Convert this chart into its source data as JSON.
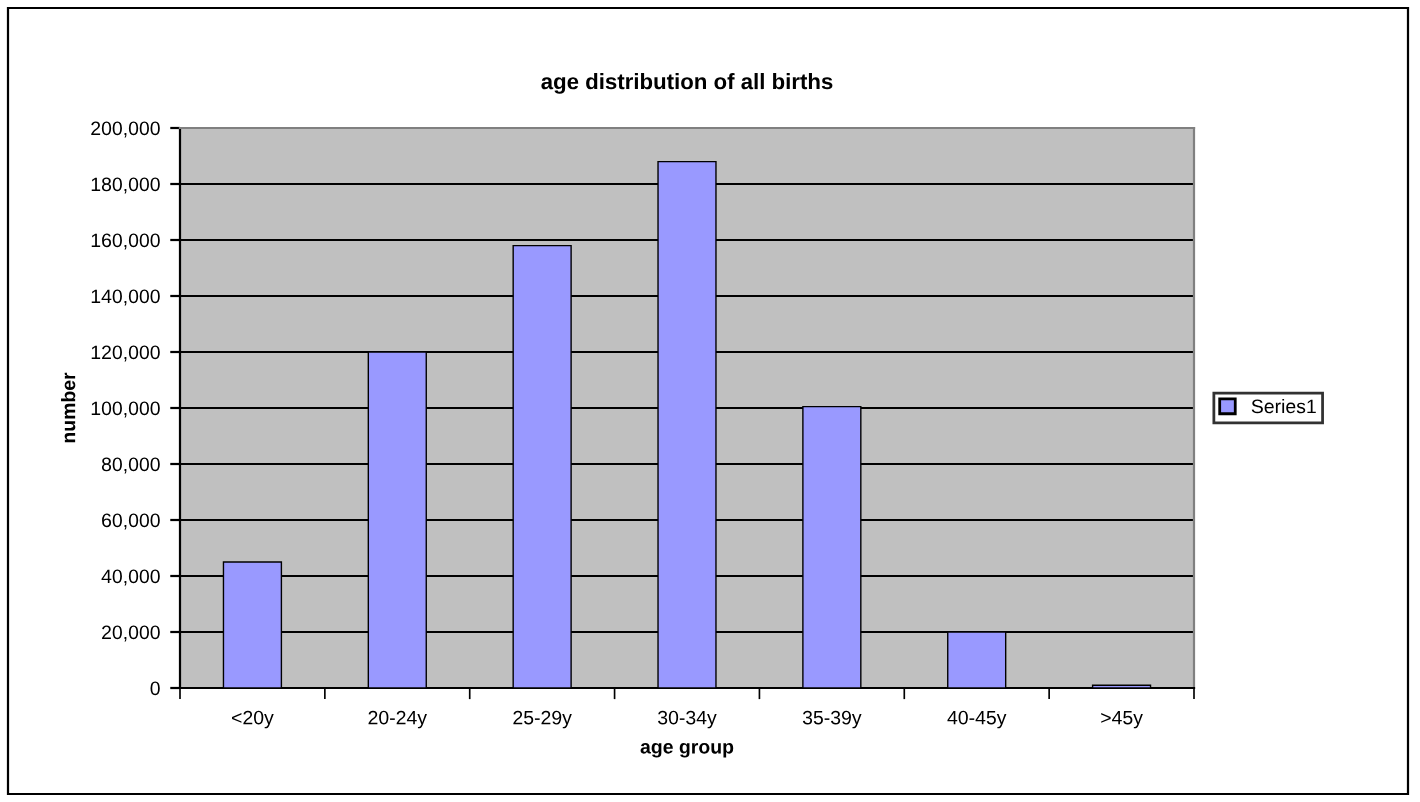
{
  "chart_data": {
    "type": "bar",
    "title": "age distribution of all births",
    "xlabel": "age group",
    "ylabel": "number",
    "categories": [
      "<20y",
      "20-24y",
      "25-29y",
      "30-34y",
      "35-39y",
      "40-45y",
      ">45y"
    ],
    "series": [
      {
        "name": "Series1",
        "color": "#9999ff",
        "values": [
          45000,
          120000,
          158000,
          188000,
          100500,
          20000,
          1000
        ]
      }
    ],
    "ylim": [
      0,
      200000
    ],
    "yticks": [
      {
        "value": 0,
        "label": "0"
      },
      {
        "value": 20000,
        "label": "20,000"
      },
      {
        "value": 40000,
        "label": "40,000"
      },
      {
        "value": 60000,
        "label": "60,000"
      },
      {
        "value": 80000,
        "label": "80,000"
      },
      {
        "value": 100000,
        "label": "100,000"
      },
      {
        "value": 120000,
        "label": "120,000"
      },
      {
        "value": 140000,
        "label": "140,000"
      },
      {
        "value": 160000,
        "label": "160,000"
      },
      {
        "value": 180000,
        "label": "180,000"
      },
      {
        "value": 200000,
        "label": "200,000"
      }
    ],
    "grid": "y",
    "legend": "right"
  }
}
